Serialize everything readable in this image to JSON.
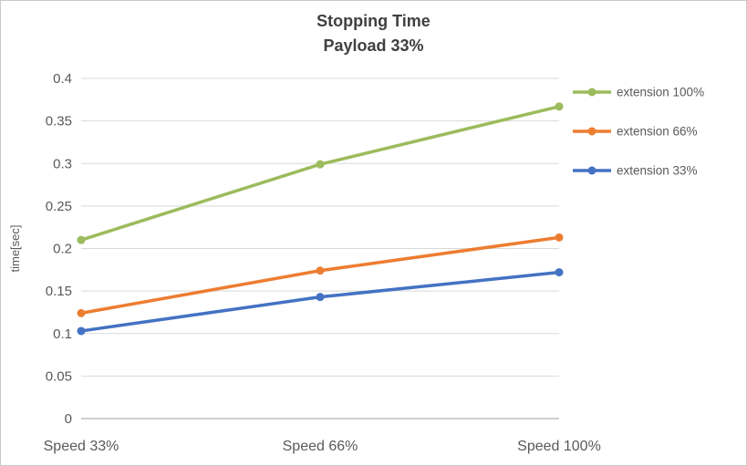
{
  "title": {
    "line1": "Stopping Time",
    "line2": "Payload 33%"
  },
  "chart_data": {
    "type": "line",
    "title": "Stopping Time Payload 33%",
    "categories": [
      "Speed 33%",
      "Speed 66%",
      "Speed 100%"
    ],
    "series": [
      {
        "name": "extension 100%",
        "values": [
          0.21,
          0.299,
          0.367
        ],
        "color": "#9CBB5C"
      },
      {
        "name": "extension 66%",
        "values": [
          0.124,
          0.174,
          0.213
        ],
        "color": "#ED7D31"
      },
      {
        "name": "extension 33%",
        "values": [
          0.103,
          0.143,
          0.172
        ],
        "color": "#4472C4"
      }
    ],
    "xlabel": "",
    "ylabel": "time[sec]",
    "ylim": [
      0,
      0.4
    ],
    "yticks": [
      "0",
      "0.05",
      "0.1",
      "0.15",
      "0.2",
      "0.25",
      "0.3",
      "0.35",
      "0.4"
    ],
    "grid": true,
    "legend_position": "right",
    "marker": "circle"
  },
  "colors": {
    "grid": "#D9D9D9",
    "axis": "#BFBFBF",
    "text": "#595959",
    "title": "#404040",
    "background": "#FFFFFF"
  }
}
